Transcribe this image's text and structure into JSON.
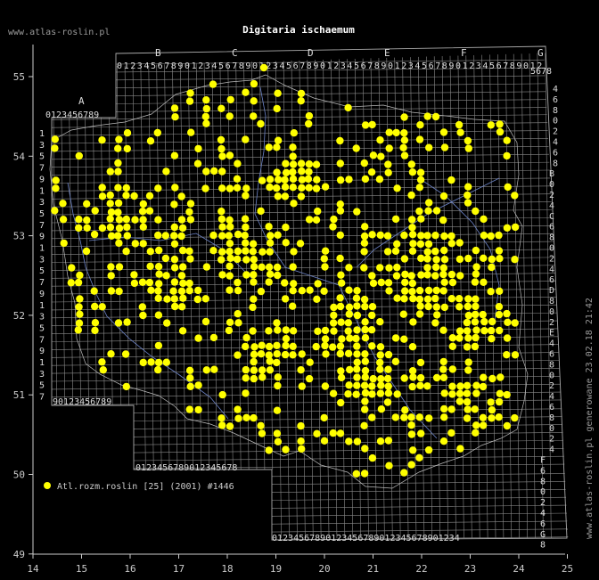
{
  "header": {
    "site_label": "www.atlas-roslin.pl",
    "title": "Digitaria ischaemum"
  },
  "side_note": {
    "text": "www.atlas-roslin.pl generowane 23.02.18 21:42"
  },
  "legend": {
    "text": "Atl.rozm.roslin [25] (2001) #1446",
    "dot_color": "#ffff00"
  },
  "axes": {
    "x_ticks": [
      "14",
      "15",
      "16",
      "17",
      "18",
      "19",
      "20",
      "21",
      "22",
      "23",
      "24",
      "25"
    ],
    "y_ticks": [
      "55",
      "54",
      "53",
      "52",
      "51",
      "50",
      "49"
    ]
  },
  "grid": {
    "top_letters": [
      "B",
      "C",
      "D",
      "E",
      "F",
      "G"
    ],
    "top_digits": "0123456789012345678901234567890123456789012345678901234567890123456789",
    "right_top_letter": "G",
    "right_top_digits": "5678",
    "a_letter": "A",
    "a_digits": "0123456789",
    "left_row_digits": [
      "1",
      "3",
      "5",
      "7",
      "9",
      "1",
      "3",
      "5",
      "7",
      "9",
      "1",
      "3",
      "5",
      "7",
      "9",
      "1",
      "3",
      "5",
      "7",
      "9",
      "1",
      "3",
      "5",
      "7"
    ],
    "right_row_labels": [
      "4",
      "6",
      "8",
      "0",
      "2",
      "4",
      "6",
      "8",
      "B",
      "0",
      "2",
      "4",
      "C",
      "6",
      "8",
      "0",
      "2",
      "4",
      "6",
      "D",
      "8",
      "0",
      "2",
      "E",
      "4",
      "6",
      "8",
      "0",
      "2",
      "4",
      "6",
      "8",
      "0",
      "2",
      "4",
      "F",
      "6",
      "8",
      "0",
      "2",
      "4",
      "6",
      "G",
      "8"
    ],
    "bottom_a_digits": "90123456789",
    "bottom_b_digits": "0123456789012345678",
    "bottom_c_digits": "01234567890123456789012345678901234"
  },
  "colors": {
    "background": "#000000",
    "grid": "#8a8a8a",
    "dots": "#ffff00",
    "axis": "#cccccc",
    "rivers": "#6d84c8"
  }
}
